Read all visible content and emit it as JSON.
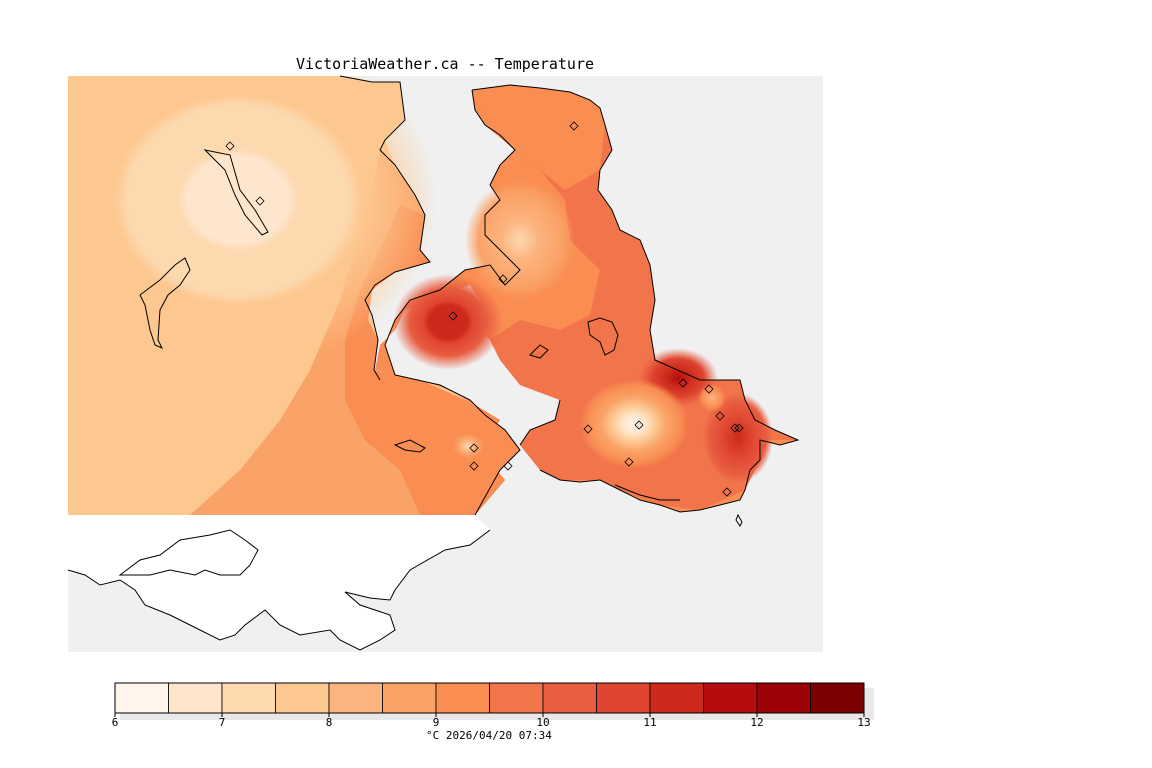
{
  "title": "VictoriaWeather.ca -- Temperature",
  "colorbar": {
    "ticks": [
      "6",
      "7",
      "8",
      "9",
      "10",
      "11",
      "12",
      "13"
    ],
    "colors": [
      "#fff5eb",
      "#fee6ce",
      "#fdd9b0",
      "#fdc890",
      "#fcb37d",
      "#faa368",
      "#f98d52",
      "#f1744b",
      "#e85d40",
      "#df4530",
      "#cd2a1c",
      "#b50d0d",
      "#9c0206",
      "#7a0002"
    ],
    "unit": "°C",
    "timestamp": "2026/04/20 07:34"
  },
  "map": {
    "ocean_color": "#f0f0f0",
    "unknown_land_color": "#ffffff"
  }
}
